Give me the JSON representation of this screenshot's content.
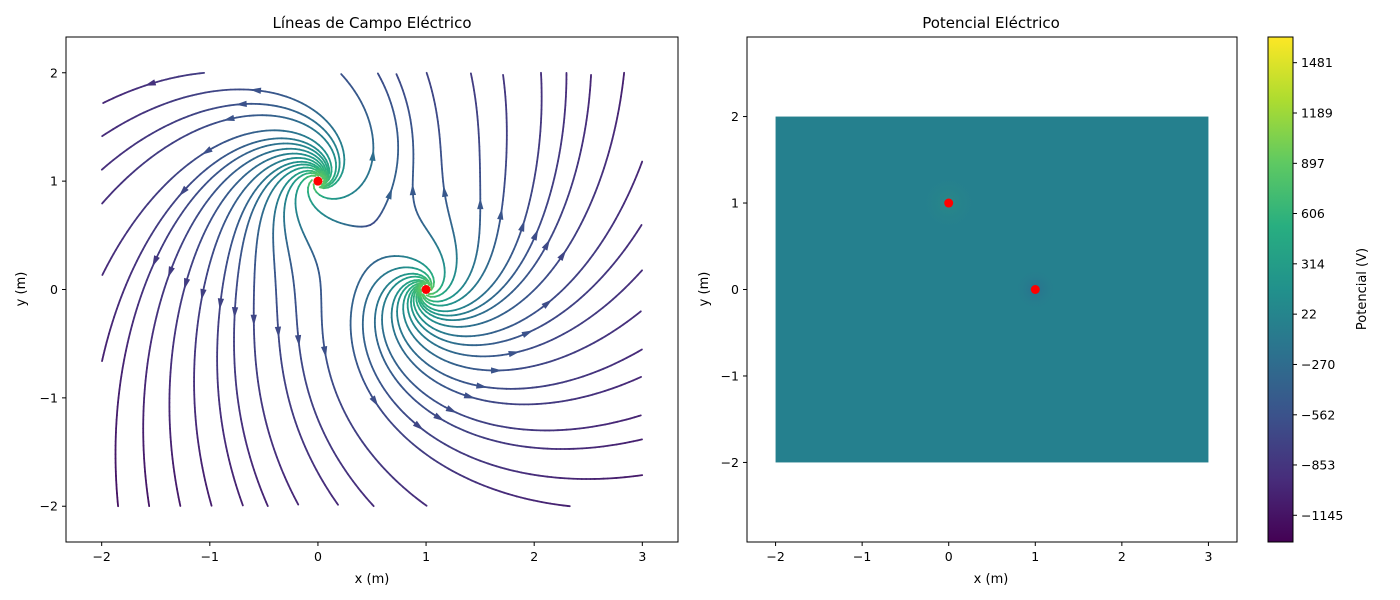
{
  "chart_data": [
    {
      "type": "streamplot",
      "title": "Líneas de Campo Eléctrico",
      "xlabel": "x (m)",
      "ylabel": "y (m)",
      "xlim": [
        -2.33,
        3.33
      ],
      "ylim": [
        -2.33,
        2.33
      ],
      "xticks": [
        -2,
        -1,
        0,
        1,
        2,
        3
      ],
      "yticks": [
        -2,
        -1,
        0,
        1,
        2
      ],
      "xtick_labels": [
        "−2",
        "−1",
        "0",
        "1",
        "2",
        "3"
      ],
      "ytick_labels": [
        "−2",
        "−1",
        "0",
        "1",
        "2"
      ],
      "grid": false,
      "colormap": "viridis",
      "charges": [
        {
          "x": 0,
          "y": 1,
          "color": "#ff0000"
        },
        {
          "x": 1,
          "y": 0,
          "color": "#ff0000"
        }
      ],
      "field_domain": {
        "x": [
          -2,
          3
        ],
        "y": [
          -2,
          2
        ]
      }
    },
    {
      "type": "heatmap",
      "title": "Potencial Eléctrico",
      "xlabel": "x (m)",
      "ylabel": "y (m)",
      "xlim": [
        -2.33,
        3.33
      ],
      "ylim": [
        -2.92,
        2.92
      ],
      "xticks": [
        -2,
        -1,
        0,
        1,
        2,
        3
      ],
      "yticks": [
        -2,
        -1,
        0,
        1,
        2
      ],
      "xtick_labels": [
        "−2",
        "−1",
        "0",
        "1",
        "2",
        "3"
      ],
      "ytick_labels": [
        "−2",
        "−1",
        "0",
        "1",
        "2"
      ],
      "grid": false,
      "colormap": "viridis",
      "extent": {
        "x": [
          -2,
          3
        ],
        "y": [
          -2,
          2
        ]
      },
      "background_value": 22,
      "background_color": "#25808e",
      "charges": [
        {
          "x": 0,
          "y": 1,
          "color": "#ff0000"
        },
        {
          "x": 1,
          "y": 0,
          "color": "#ff0000"
        }
      ],
      "colorbar": {
        "label": "Potencial (V)",
        "min": -1300,
        "max": 1630,
        "ticks": [
          -1145,
          -853,
          -562,
          -270,
          22,
          314,
          606,
          897,
          1189,
          1481
        ],
        "tick_labels": [
          "−1145",
          "−853",
          "−562",
          "−270",
          "22",
          "314",
          "606",
          "897",
          "1189",
          "1481"
        ]
      }
    }
  ]
}
